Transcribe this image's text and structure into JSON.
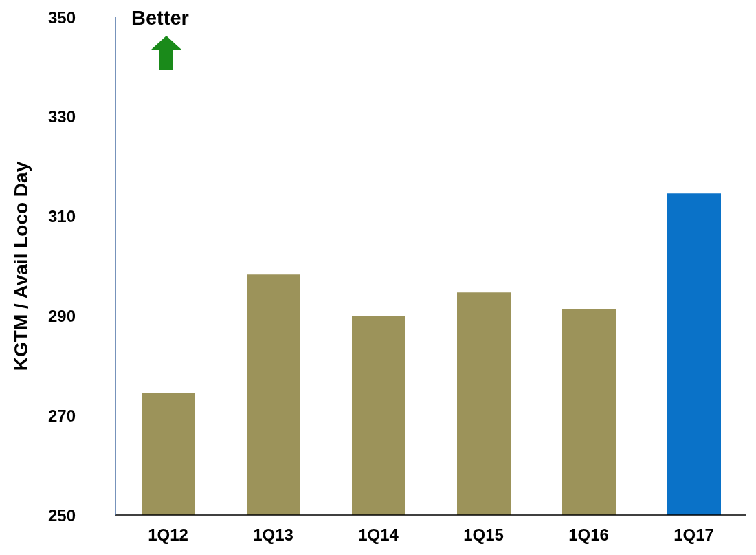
{
  "chart_data": {
    "type": "bar",
    "ylabel": "KGTM / Avail Loco Day",
    "categories": [
      "1Q12",
      "1Q13",
      "1Q14",
      "1Q15",
      "1Q16",
      "1Q17"
    ],
    "values": [
      274.6,
      298.3,
      289.9,
      294.7,
      291.4,
      314.6
    ],
    "colors": [
      "#9c935a",
      "#9c935a",
      "#9c935a",
      "#9c935a",
      "#9c935a",
      "#0a72c8"
    ],
    "ylim": [
      250,
      350
    ],
    "yticks": [
      250,
      270,
      290,
      310,
      330,
      350
    ],
    "grid": false,
    "legend": false,
    "annotations": [
      "Better"
    ]
  }
}
